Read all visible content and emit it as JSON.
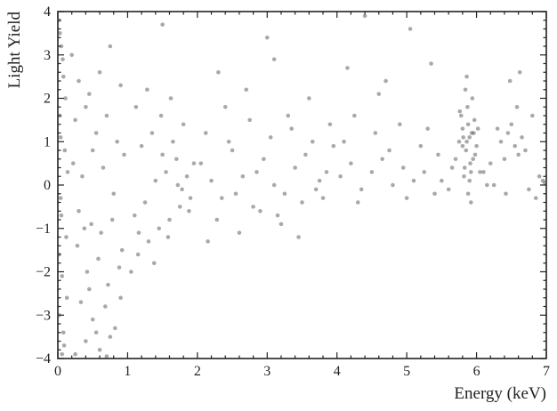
{
  "chart_data": {
    "type": "scatter",
    "xlabel": "Energy (keV)",
    "ylabel": "Light Yield",
    "xlim": [
      0,
      7
    ],
    "ylim": [
      -4,
      4
    ],
    "xticks": [
      0,
      1,
      2,
      3,
      4,
      5,
      6,
      7
    ],
    "yticks": [
      {
        "value": -4,
        "label": "−4"
      },
      {
        "value": -3,
        "label": "−3"
      },
      {
        "value": -2,
        "label": "−2"
      },
      {
        "value": -1,
        "label": "−1"
      },
      0,
      1,
      2,
      3,
      4
    ],
    "minor_divisions": 5,
    "color": "#404040",
    "alpha": 0.45,
    "x": [
      0.02,
      0.05,
      0.08,
      0.03,
      0.1,
      0.04,
      0.12,
      0.06,
      0.02,
      0.09,
      0.03,
      0.07,
      0.11,
      0.04,
      0.14,
      0.05,
      0.02,
      0.13,
      0.08,
      0.06,
      0.2,
      0.3,
      0.45,
      0.6,
      0.75,
      0.9,
      0.25,
      0.4,
      0.55,
      0.7,
      0.85,
      0.95,
      0.22,
      0.35,
      0.5,
      0.65,
      0.8,
      0.3,
      0.48,
      0.62,
      0.78,
      0.92,
      0.28,
      0.42,
      0.58,
      0.72,
      0.88,
      0.33,
      0.5,
      0.68,
      0.82,
      0.4,
      0.6,
      0.75,
      0.25,
      0.55,
      0.7,
      0.45,
      0.9,
      0.38,
      1.05,
      1.15,
      1.3,
      1.45,
      1.6,
      1.75,
      1.9,
      1.1,
      1.25,
      1.4,
      1.55,
      1.7,
      1.85,
      1.2,
      1.35,
      1.5,
      1.65,
      1.8,
      1.95,
      1.12,
      1.28,
      1.48,
      1.62,
      1.78,
      1.16,
      1.38,
      1.58,
      1.72,
      1.88,
      1.5,
      2.05,
      2.2,
      2.35,
      2.5,
      2.65,
      2.8,
      2.95,
      3.1,
      3.25,
      3.4,
      3.55,
      3.7,
      3.85,
      2.12,
      2.28,
      2.45,
      2.6,
      2.75,
      2.9,
      3.05,
      3.2,
      3.35,
      3.5,
      3.65,
      3.8,
      3.95,
      2.4,
      2.7,
      3.0,
      3.3,
      3.6,
      3.9,
      2.15,
      2.55,
      2.85,
      3.15,
      3.45,
      3.75,
      2.3,
      3.1,
      4.05,
      4.2,
      4.35,
      4.5,
      4.65,
      4.8,
      4.95,
      5.1,
      5.25,
      5.4,
      4.1,
      4.3,
      4.55,
      4.75,
      5.0,
      5.2,
      5.45,
      4.25,
      4.6,
      4.9,
      5.3,
      4.4,
      5.05,
      4.15,
      4.7,
      5.75,
      5.8,
      5.85,
      5.9,
      5.95,
      6.0,
      5.78,
      5.83,
      5.88,
      5.93,
      5.98,
      5.82,
      5.87,
      5.92,
      5.97,
      5.8,
      5.86,
      5.91,
      5.96,
      5.84,
      5.9,
      5.76,
      6.02,
      5.88,
      5.94,
      5.7,
      6.05,
      5.86,
      5.92,
      5.81,
      6.35,
      6.45,
      6.55,
      6.65,
      6.4,
      6.5,
      6.6,
      6.3,
      6.7,
      6.48,
      6.2,
      6.8,
      6.9,
      6.25,
      6.58,
      6.42,
      6.75,
      6.95,
      6.1,
      6.62,
      5.5,
      5.6,
      6.15,
      6.85,
      6.98,
      5.65,
      5.35
    ],
    "values": [
      3.8,
      3.2,
      2.5,
      1.6,
      0.8,
      -0.3,
      -1.2,
      -2.1,
      -3.0,
      -3.7,
      3.5,
      2.9,
      2.0,
      1.1,
      0.3,
      -0.7,
      -1.6,
      -2.6,
      -3.4,
      -3.9,
      3.0,
      2.4,
      2.1,
      2.6,
      3.2,
      2.3,
      1.5,
      1.8,
      1.2,
      1.6,
      1.0,
      0.7,
      0.5,
      0.2,
      0.8,
      0.4,
      -0.2,
      -0.6,
      -0.9,
      -1.1,
      -0.8,
      -1.5,
      -1.4,
      -2.0,
      -1.7,
      -2.3,
      -1.9,
      -2.7,
      -3.1,
      -2.8,
      -3.3,
      -3.6,
      -3.8,
      -3.5,
      -3.9,
      -3.4,
      -3.95,
      -2.4,
      -2.6,
      -1.0,
      -2.0,
      -1.6,
      -1.3,
      -1.0,
      -0.8,
      -0.5,
      -0.3,
      -0.7,
      -0.4,
      0.1,
      0.3,
      0.6,
      0.2,
      0.9,
      1.2,
      0.7,
      1.0,
      1.4,
      0.5,
      1.8,
      2.2,
      1.6,
      2.0,
      -0.1,
      -1.1,
      -1.8,
      -1.2,
      0.0,
      -0.6,
      3.7,
      0.5,
      0.1,
      -0.3,
      0.8,
      0.2,
      -0.5,
      0.6,
      0.0,
      -0.2,
      0.4,
      0.7,
      -0.1,
      0.3,
      1.2,
      -0.8,
      1.0,
      -1.1,
      1.5,
      -0.6,
      1.1,
      -0.9,
      1.3,
      -0.4,
      1.0,
      -0.3,
      0.9,
      1.8,
      2.2,
      3.4,
      1.6,
      2.0,
      1.4,
      -1.3,
      -0.2,
      0.3,
      -0.7,
      -1.2,
      0.1,
      2.6,
      2.9,
      0.2,
      0.5,
      -0.1,
      0.3,
      0.6,
      0.0,
      0.4,
      0.1,
      0.3,
      -0.2,
      1.0,
      -0.4,
      1.2,
      0.8,
      -0.3,
      0.9,
      0.7,
      1.6,
      2.1,
      1.4,
      1.3,
      3.9,
      3.6,
      2.7,
      2.4,
      1.0,
      1.3,
      0.8,
      1.1,
      0.6,
      0.9,
      1.6,
      0.4,
      1.4,
      1.2,
      0.7,
      0.2,
      1.8,
      0.3,
      1.5,
      0.9,
      1.0,
      0.5,
      1.2,
      2.2,
      0.1,
      1.7,
      1.3,
      -0.2,
      2.0,
      0.6,
      0.3,
      2.5,
      -0.4,
      1.1,
      1.0,
      1.2,
      0.9,
      1.1,
      0.6,
      1.4,
      0.7,
      1.3,
      0.8,
      2.4,
      0.5,
      1.6,
      0.2,
      0.0,
      1.8,
      -0.2,
      -0.1,
      0.1,
      0.3,
      2.6,
      0.1,
      -0.1,
      0.0,
      -0.3,
      0.05,
      0.4,
      2.8
    ]
  }
}
